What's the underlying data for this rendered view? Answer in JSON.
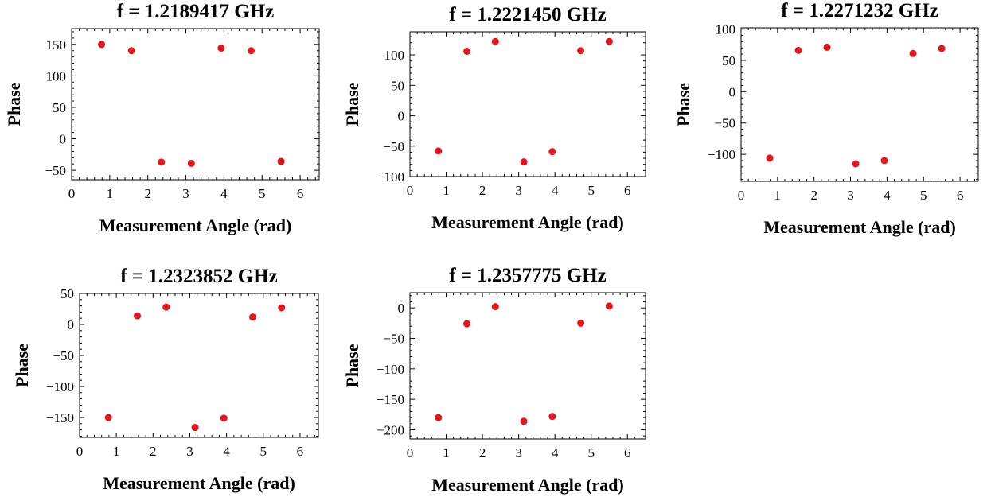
{
  "chart_data": [
    {
      "type": "scatter",
      "title": "f = 1.2189417 GHz",
      "xlabel": "Measurement Angle (rad)",
      "ylabel": "Phase",
      "xlim": [
        0,
        6.5
      ],
      "ylim": [
        -65,
        175
      ],
      "xticks": [
        0,
        1,
        2,
        3,
        4,
        5,
        6
      ],
      "yticks": [
        -50,
        0,
        50,
        100,
        150
      ],
      "x": [
        0.785,
        1.571,
        2.356,
        3.142,
        3.927,
        4.712,
        5.498
      ],
      "y": [
        150,
        140,
        -37,
        -39,
        144,
        140,
        -36
      ],
      "marker_color": "#e8141c"
    },
    {
      "type": "scatter",
      "title": "f = 1.2221450 GHz",
      "xlabel": "Measurement Angle (rad)",
      "ylabel": "Phase",
      "xlim": [
        0,
        6.5
      ],
      "ylim": [
        -100,
        138
      ],
      "xticks": [
        0,
        1,
        2,
        3,
        4,
        5,
        6
      ],
      "yticks": [
        -100,
        -50,
        0,
        50,
        100
      ],
      "x": [
        0.785,
        1.571,
        2.356,
        3.142,
        3.927,
        4.712,
        5.498
      ],
      "y": [
        -58,
        106,
        122,
        -76,
        -59,
        107,
        122
      ],
      "marker_color": "#e8141c"
    },
    {
      "type": "scatter",
      "title": "f = 1.2271232 GHz",
      "xlabel": "Measurement Angle (rad)",
      "ylabel": "Phase",
      "xlim": [
        0,
        6.5
      ],
      "ylim": [
        -143,
        102
      ],
      "xticks": [
        0,
        1,
        2,
        3,
        4,
        5,
        6
      ],
      "yticks": [
        -100,
        -50,
        0,
        50,
        100
      ],
      "x": [
        0.785,
        1.571,
        2.356,
        3.142,
        3.927,
        4.712,
        5.498
      ],
      "y": [
        -106,
        66,
        71,
        -115,
        -110,
        61,
        69
      ],
      "marker_color": "#e8141c"
    },
    {
      "type": "scatter",
      "title": "f = 1.2323852 GHz",
      "xlabel": "Measurement Angle (rad)",
      "ylabel": "Phase",
      "xlim": [
        0,
        6.5
      ],
      "ylim": [
        -182,
        50
      ],
      "xticks": [
        0,
        1,
        2,
        3,
        4,
        5,
        6
      ],
      "yticks": [
        -150,
        -100,
        -50,
        0,
        50
      ],
      "x": [
        0.785,
        1.571,
        2.356,
        3.142,
        3.927,
        4.712,
        5.498
      ],
      "y": [
        -150,
        14,
        28,
        -166,
        -151,
        12,
        27
      ],
      "marker_color": "#e8141c"
    },
    {
      "type": "scatter",
      "title": "f = 1.2357775 GHz",
      "xlabel": "Measurement Angle (rad)",
      "ylabel": "Phase",
      "xlim": [
        0,
        6.5
      ],
      "ylim": [
        -215,
        25
      ],
      "xticks": [
        0,
        1,
        2,
        3,
        4,
        5,
        6
      ],
      "yticks": [
        -200,
        -150,
        -100,
        -50,
        0
      ],
      "x": [
        0.785,
        1.571,
        2.356,
        3.142,
        3.927,
        4.712,
        5.498
      ],
      "y": [
        -180,
        -26,
        2,
        -186,
        -178,
        -25,
        3
      ],
      "marker_color": "#e8141c"
    }
  ]
}
